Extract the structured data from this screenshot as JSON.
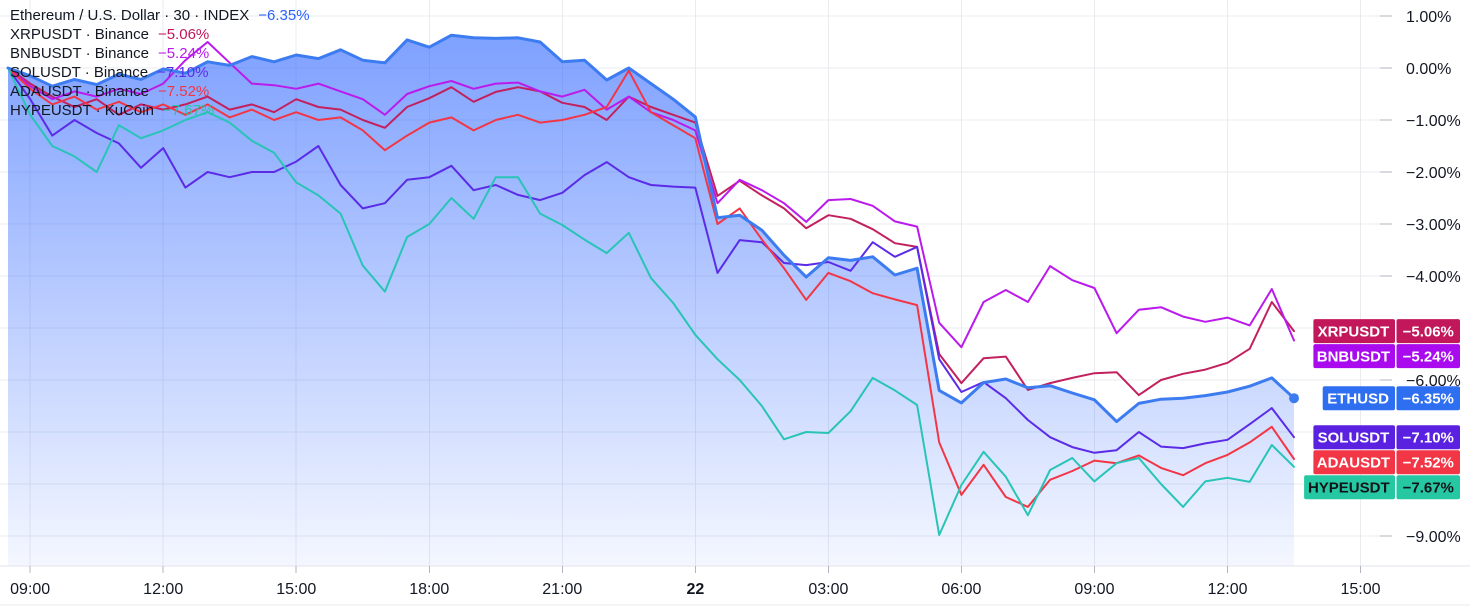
{
  "chart_data": {
    "type": "line",
    "description": "Percent-change comparison of crypto pairs, 30-minute bars",
    "unit": "%",
    "point_interval_minutes": 30,
    "grid": true,
    "legend_position": "top-left",
    "x_axis": {
      "tick_labels": [
        "09:00",
        "12:00",
        "15:00",
        "18:00",
        "21:00",
        "22",
        "03:00",
        "06:00",
        "09:00",
        "12:00",
        "15:00"
      ],
      "bold_index": 5
    },
    "y_axis": {
      "gridline_values": [
        1,
        0,
        -1,
        -2,
        -3,
        -4,
        -5,
        -6,
        -7,
        -8,
        -9
      ],
      "labels": [
        {
          "value": 1,
          "text": "1.00%"
        },
        {
          "value": 0,
          "text": "0.00%"
        },
        {
          "value": -1,
          "text": "−1.00%"
        },
        {
          "value": -2,
          "text": "−2.00%"
        },
        {
          "value": -3,
          "text": "−3.00%"
        },
        {
          "value": -4,
          "text": "−4.00%"
        },
        {
          "value": -6,
          "text": "−6.00%"
        },
        {
          "value": -9,
          "text": "−9.00%"
        }
      ]
    },
    "series": [
      {
        "id": "eth",
        "symbol": "ETHUSD",
        "legend_label": "Ethereum / U.S. Dollar · 30 · INDEX",
        "change": "−6.35%",
        "final_value": -6.35,
        "color": "#3C7CF0",
        "legend_value_color": "#2962FF",
        "badge_color": "#2E6FF2",
        "badge_text_color": "#FFFFFF",
        "line_width": 3,
        "area": true,
        "values": [
          0.0,
          -0.15,
          -0.35,
          -0.22,
          -0.32,
          -0.12,
          -0.22,
          -0.02,
          -0.1,
          0.12,
          0.05,
          0.22,
          0.12,
          0.25,
          0.18,
          0.35,
          0.15,
          0.1,
          0.54,
          0.4,
          0.63,
          0.58,
          0.57,
          0.58,
          0.5,
          0.12,
          0.15,
          -0.23,
          0.0,
          -0.3,
          -0.6,
          -0.94,
          -2.88,
          -2.83,
          -3.12,
          -3.6,
          -4.02,
          -3.65,
          -3.7,
          -3.63,
          -3.98,
          -3.85,
          -6.2,
          -6.44,
          -6.05,
          -5.98,
          -6.15,
          -6.11,
          -6.25,
          -6.38,
          -6.8,
          -6.45,
          -6.37,
          -6.35,
          -6.3,
          -6.23,
          -6.12,
          -5.96,
          -6.35
        ]
      },
      {
        "id": "xrp",
        "symbol": "XRPUSDT",
        "legend_label": "XRPUSDT · Binance",
        "change": "−5.06%",
        "final_value": -5.06,
        "color": "#C2205E",
        "legend_value_color": "#C2185B",
        "badge_color": "#C2185B",
        "badge_text_color": "#FFFFFF",
        "line_width": 2,
        "area": false,
        "values": [
          0.0,
          -0.3,
          -0.55,
          -0.75,
          -0.6,
          -0.9,
          -0.7,
          -0.8,
          -0.7,
          -0.55,
          -0.8,
          -0.7,
          -0.85,
          -0.6,
          -0.75,
          -0.8,
          -1.0,
          -1.15,
          -0.75,
          -0.58,
          -0.37,
          -0.65,
          -0.46,
          -0.37,
          -0.45,
          -0.67,
          -0.75,
          -1.0,
          -0.55,
          -0.75,
          -0.9,
          -1.05,
          -2.46,
          -2.17,
          -2.45,
          -2.7,
          -3.08,
          -2.83,
          -2.9,
          -3.1,
          -3.37,
          -3.44,
          -5.5,
          -6.06,
          -5.58,
          -5.55,
          -6.19,
          -6.06,
          -5.96,
          -5.87,
          -5.85,
          -6.29,
          -6.0,
          -5.88,
          -5.8,
          -5.67,
          -5.4,
          -4.5,
          -5.06
        ]
      },
      {
        "id": "bnb",
        "symbol": "BNBUSDT",
        "legend_label": "BNBUSDT · Binance",
        "change": "−5.24%",
        "final_value": -5.24,
        "color": "#BB1AEC",
        "legend_value_color": "#BB1AEC",
        "badge_color": "#AA0AEE",
        "badge_text_color": "#FFFFFF",
        "line_width": 2,
        "area": false,
        "values": [
          0.0,
          -0.35,
          -0.6,
          -0.45,
          -0.55,
          -0.4,
          -0.5,
          -0.3,
          0.15,
          0.5,
          0.1,
          -0.3,
          -0.33,
          -0.4,
          -0.3,
          -0.45,
          -0.6,
          -0.9,
          -0.5,
          -0.35,
          -0.25,
          -0.4,
          -0.3,
          -0.28,
          -0.45,
          -0.55,
          -0.42,
          -0.8,
          -0.55,
          -0.85,
          -1.0,
          -1.2,
          -2.6,
          -2.15,
          -2.35,
          -2.6,
          -2.96,
          -2.54,
          -2.52,
          -2.65,
          -2.95,
          -3.05,
          -4.9,
          -5.37,
          -4.5,
          -4.27,
          -4.5,
          -3.81,
          -4.08,
          -4.23,
          -5.1,
          -4.65,
          -4.6,
          -4.78,
          -4.88,
          -4.8,
          -4.95,
          -4.25,
          -5.24
        ]
      },
      {
        "id": "sol",
        "symbol": "SOLUSDT",
        "legend_label": "SOLUSDT · Binance",
        "change": "−7.10%",
        "final_value": -7.1,
        "color": "#5B2BE8",
        "legend_value_color": "#5B2BE8",
        "badge_color": "#5B21E0",
        "badge_text_color": "#FFFFFF",
        "line_width": 2,
        "area": false,
        "values": [
          0.0,
          -0.6,
          -1.3,
          -1.0,
          -1.25,
          -1.45,
          -1.92,
          -1.54,
          -2.3,
          -2.0,
          -2.1,
          -2.0,
          -2.0,
          -1.8,
          -1.5,
          -2.25,
          -2.7,
          -2.6,
          -2.15,
          -2.1,
          -1.88,
          -2.35,
          -2.25,
          -2.44,
          -2.54,
          -2.4,
          -2.06,
          -1.81,
          -2.1,
          -2.25,
          -2.28,
          -2.3,
          -3.94,
          -3.31,
          -3.35,
          -3.75,
          -3.79,
          -3.73,
          -3.9,
          -3.35,
          -3.63,
          -3.44,
          -5.6,
          -6.23,
          -6.04,
          -6.35,
          -6.77,
          -7.1,
          -7.29,
          -7.4,
          -7.35,
          -7.0,
          -7.28,
          -7.31,
          -7.22,
          -7.15,
          -6.85,
          -6.54,
          -7.1
        ]
      },
      {
        "id": "ada",
        "symbol": "ADAUSDT",
        "legend_label": "ADAUSDT · Binance",
        "change": "−7.52%",
        "final_value": -7.52,
        "color": "#F23645",
        "legend_value_color": "#F23645",
        "badge_color": "#F23645",
        "badge_text_color": "#FFFFFF",
        "line_width": 2,
        "area": false,
        "values": [
          0.0,
          -0.4,
          -0.7,
          -0.55,
          -0.8,
          -0.65,
          -0.85,
          -0.7,
          -0.9,
          -0.7,
          -0.95,
          -0.8,
          -1.0,
          -0.85,
          -1.0,
          -0.95,
          -1.2,
          -1.58,
          -1.3,
          -1.05,
          -0.95,
          -1.2,
          -1.0,
          -0.9,
          -1.05,
          -1.0,
          -0.9,
          -0.75,
          -0.05,
          -0.85,
          -1.1,
          -1.35,
          -3.0,
          -2.7,
          -3.3,
          -3.85,
          -4.46,
          -3.94,
          -4.1,
          -4.33,
          -4.45,
          -4.56,
          -7.2,
          -8.21,
          -7.63,
          -8.25,
          -8.44,
          -7.92,
          -7.75,
          -7.55,
          -7.6,
          -7.45,
          -7.69,
          -7.83,
          -7.6,
          -7.44,
          -7.2,
          -6.9,
          -7.52
        ]
      },
      {
        "id": "hype",
        "symbol": "HYPEUSDT",
        "legend_label": "HYPEUSDT · KuCoin",
        "change": "−7.67%",
        "final_value": -7.67,
        "color": "#28C4B6",
        "legend_value_color": "#26C6A2",
        "badge_color": "#26C7A3",
        "badge_text_color": "#101418",
        "line_width": 2,
        "area": false,
        "values": [
          0.0,
          -0.9,
          -1.5,
          -1.7,
          -2.0,
          -1.1,
          -1.35,
          -1.2,
          -1.0,
          -0.85,
          -1.05,
          -1.4,
          -1.63,
          -2.2,
          -2.45,
          -2.8,
          -3.8,
          -4.3,
          -3.25,
          -3.0,
          -2.5,
          -2.9,
          -2.1,
          -2.1,
          -2.8,
          -3.02,
          -3.3,
          -3.56,
          -3.17,
          -4.04,
          -4.52,
          -5.13,
          -5.6,
          -6.0,
          -6.5,
          -7.14,
          -7.0,
          -7.02,
          -6.6,
          -5.96,
          -6.2,
          -6.48,
          -8.98,
          -8.02,
          -7.38,
          -7.86,
          -8.6,
          -7.73,
          -7.5,
          -7.95,
          -7.6,
          -7.5,
          -8.0,
          -8.44,
          -7.95,
          -7.88,
          -7.96,
          -7.25,
          -7.67
        ]
      }
    ],
    "colors": {
      "grid": "#E9EBEF",
      "axis_text": "#131722",
      "tick": "#B2B5BE",
      "separator": "#E0E3EB",
      "background": "#FFFFFF"
    }
  }
}
